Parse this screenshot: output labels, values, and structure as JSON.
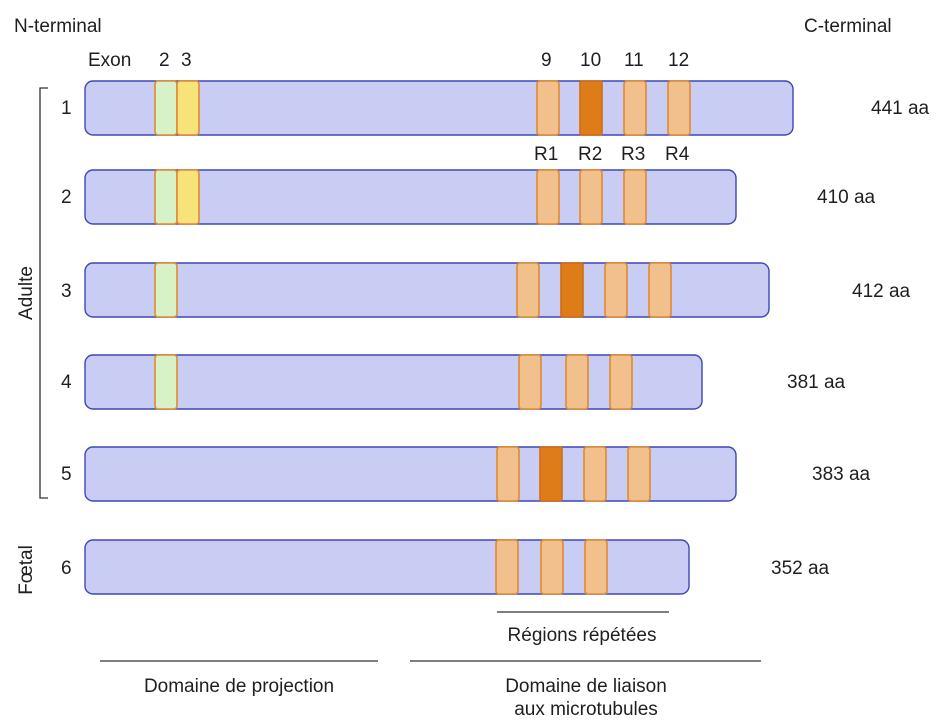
{
  "header": {
    "n_terminal": "N-terminal",
    "c_terminal": "C-terminal",
    "exon_label": "Exon"
  },
  "exon_numbers": [
    "2",
    "3",
    "9",
    "10",
    "11",
    "12"
  ],
  "repeat_labels": [
    "R1",
    "R2",
    "R3",
    "R4"
  ],
  "groups": {
    "adult": "Adulte",
    "fetal": "Fœtal"
  },
  "isoforms": [
    {
      "id": "1",
      "length": "441 aa",
      "exons": [
        "2",
        "3",
        "9",
        "10",
        "11",
        "12"
      ]
    },
    {
      "id": "2",
      "length": "410 aa",
      "exons": [
        "2",
        "3",
        "9",
        "11",
        "12"
      ]
    },
    {
      "id": "3",
      "length": "412 aa",
      "exons": [
        "2",
        "9",
        "10",
        "11",
        "12"
      ]
    },
    {
      "id": "4",
      "length": "381 aa",
      "exons": [
        "2",
        "9",
        "11",
        "12"
      ]
    },
    {
      "id": "5",
      "length": "383 aa",
      "exons": [
        "9",
        "10",
        "11",
        "12"
      ]
    },
    {
      "id": "6",
      "length": "352 aa",
      "exons": [
        "9",
        "11",
        "12"
      ]
    }
  ],
  "domains": {
    "repeats": "Régions répétées",
    "projection": "Domaine de projection",
    "binding_line1": "Domaine de liaison",
    "binding_line2": "aux microtubules"
  },
  "colors": {
    "bar_fill": "#c9cdf4",
    "bar_stroke": "#3d47b8",
    "exon2": "#d6f2c6",
    "exon3": "#f8e27a",
    "repeat": "#f2c08c",
    "exon10": "#df7c1a",
    "exon_stroke": "#e08a2c"
  }
}
